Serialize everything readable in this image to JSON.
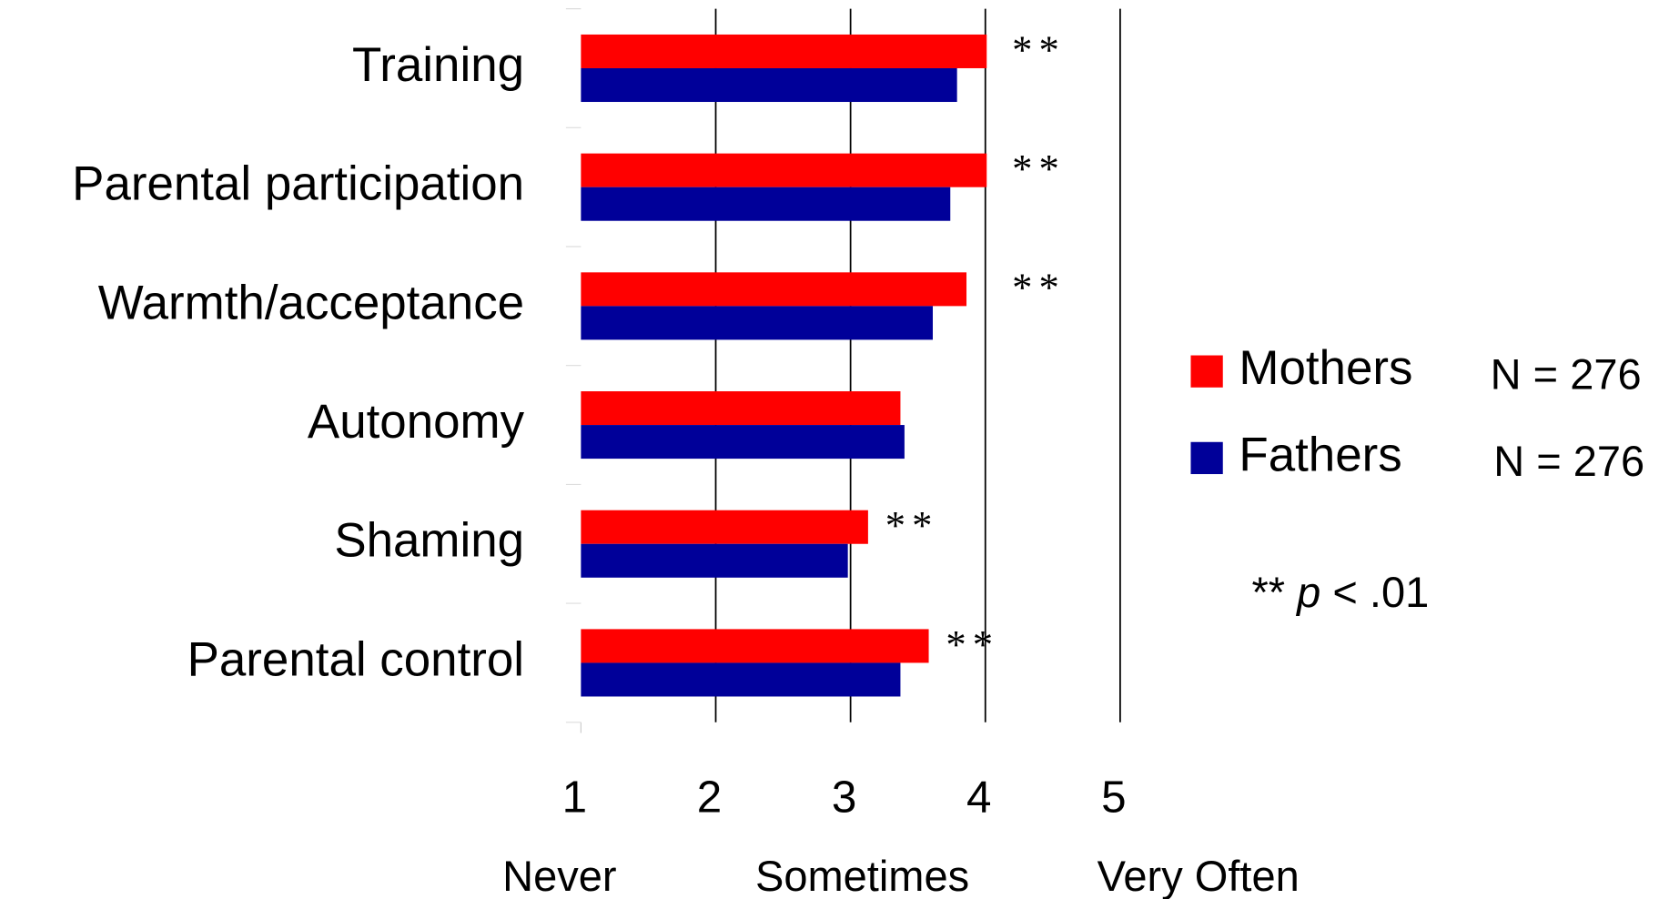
{
  "chart_data": {
    "type": "bar",
    "orientation": "horizontal",
    "categories": [
      "Training",
      "Parental participation",
      "Warmth/acceptance",
      "Autonomy",
      "Shaming",
      "Parental control"
    ],
    "series": [
      {
        "name": "Mothers",
        "color": "#ff0000",
        "n_label": "N = 276",
        "values": [
          4.01,
          4.01,
          3.86,
          3.37,
          3.13,
          3.58
        ]
      },
      {
        "name": "Fathers",
        "color": "#000099",
        "n_label": "N = 276",
        "values": [
          3.79,
          3.74,
          3.61,
          3.4,
          2.98,
          3.37
        ]
      }
    ],
    "significance": [
      "**",
      "**",
      "**",
      null,
      "**",
      "**"
    ],
    "xlim": [
      1,
      5
    ],
    "xticks": [
      1,
      2,
      3,
      4,
      5
    ],
    "scale_anchors": [
      {
        "value": 1,
        "label": "Never"
      },
      {
        "value": 3,
        "label": "Sometimes"
      },
      {
        "value": 5,
        "label": "Very Often"
      }
    ],
    "grid": true,
    "note": {
      "prefix": "**",
      "italic": "p",
      "suffix": "< .01"
    }
  }
}
